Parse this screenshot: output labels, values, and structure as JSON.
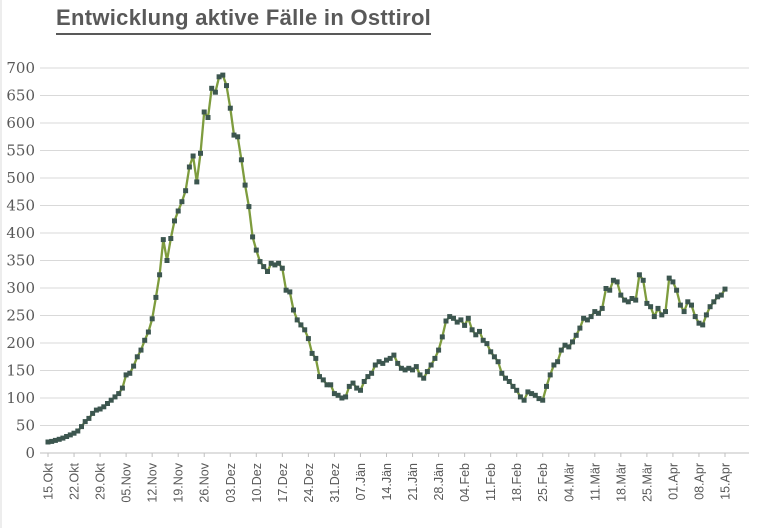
{
  "page": {
    "title": "Entwicklung aktive Fälle in Osttirol"
  },
  "colors": {
    "title_text": "#595959",
    "axis_label_text": "#595959",
    "gridline": "#d9d9d9",
    "axis_line": "#bfbfbf",
    "tick_mark": "#bfbfbf",
    "series_line": "#7E9C3E",
    "series_marker": "#3C564F",
    "background": "#ffffff"
  },
  "chart_data": {
    "type": "line",
    "title": "Entwicklung aktive Fälle in Osttirol",
    "xlabel": "",
    "ylabel": "",
    "ylim": [
      0,
      700
    ],
    "grid": "horizontal",
    "legend": "none",
    "marker_shape": "square",
    "x_tick_interval_days": 7,
    "x_tick_labels": [
      "15.Okt",
      "22.Okt",
      "29.Okt",
      "05.Nov",
      "12.Nov",
      "19.Nov",
      "26.Nov",
      "03.Dez",
      "10.Dez",
      "17.Dez",
      "24.Dez",
      "31.Dez",
      "07.Jän",
      "14.Jän",
      "21.Jän",
      "28.Jän",
      "04.Feb",
      "11.Feb",
      "18.Feb",
      "25.Feb",
      "04.Mär",
      "11.Mär",
      "18.Mär",
      "25.Mär",
      "01.Apr",
      "08.Apr",
      "15.Apr"
    ],
    "y_ticks": [
      0,
      50,
      100,
      150,
      200,
      250,
      300,
      350,
      400,
      450,
      500,
      550,
      600,
      650,
      700
    ],
    "series": [
      {
        "values": [
          20,
          21,
          23,
          25,
          27,
          30,
          33,
          36,
          40,
          48,
          57,
          63,
          72,
          78,
          80,
          84,
          90,
          96,
          102,
          108,
          118,
          142,
          145,
          158,
          175,
          187,
          205,
          220,
          244,
          283,
          324,
          388,
          350,
          390,
          422,
          440,
          457,
          477,
          520,
          540,
          493,
          545,
          620,
          610,
          663,
          656,
          684,
          687,
          668,
          627,
          578,
          575,
          533,
          487,
          448,
          393,
          369,
          348,
          339,
          330,
          345,
          342,
          345,
          336,
          296,
          293,
          260,
          242,
          233,
          224,
          208,
          181,
          172,
          139,
          133,
          124,
          124,
          108,
          105,
          100,
          102,
          121,
          127,
          118,
          114,
          130,
          139,
          145,
          160,
          166,
          163,
          169,
          172,
          178,
          163,
          154,
          151,
          154,
          151,
          157,
          142,
          136,
          148,
          160,
          172,
          187,
          211,
          240,
          248,
          245,
          238,
          242,
          232,
          245,
          224,
          215,
          221,
          205,
          199,
          184,
          175,
          166,
          145,
          136,
          130,
          121,
          114,
          102,
          96,
          111,
          108,
          105,
          99,
          96,
          121,
          142,
          160,
          166,
          187,
          196,
          193,
          202,
          214,
          227,
          245,
          242,
          248,
          257,
          254,
          263,
          299,
          296,
          314,
          311,
          287,
          278,
          275,
          281,
          278,
          324,
          314,
          272,
          266,
          248,
          263,
          251,
          257,
          318,
          311,
          296,
          269,
          257,
          275,
          269,
          248,
          236,
          233,
          251,
          266,
          275,
          284,
          287,
          298
        ]
      }
    ]
  }
}
